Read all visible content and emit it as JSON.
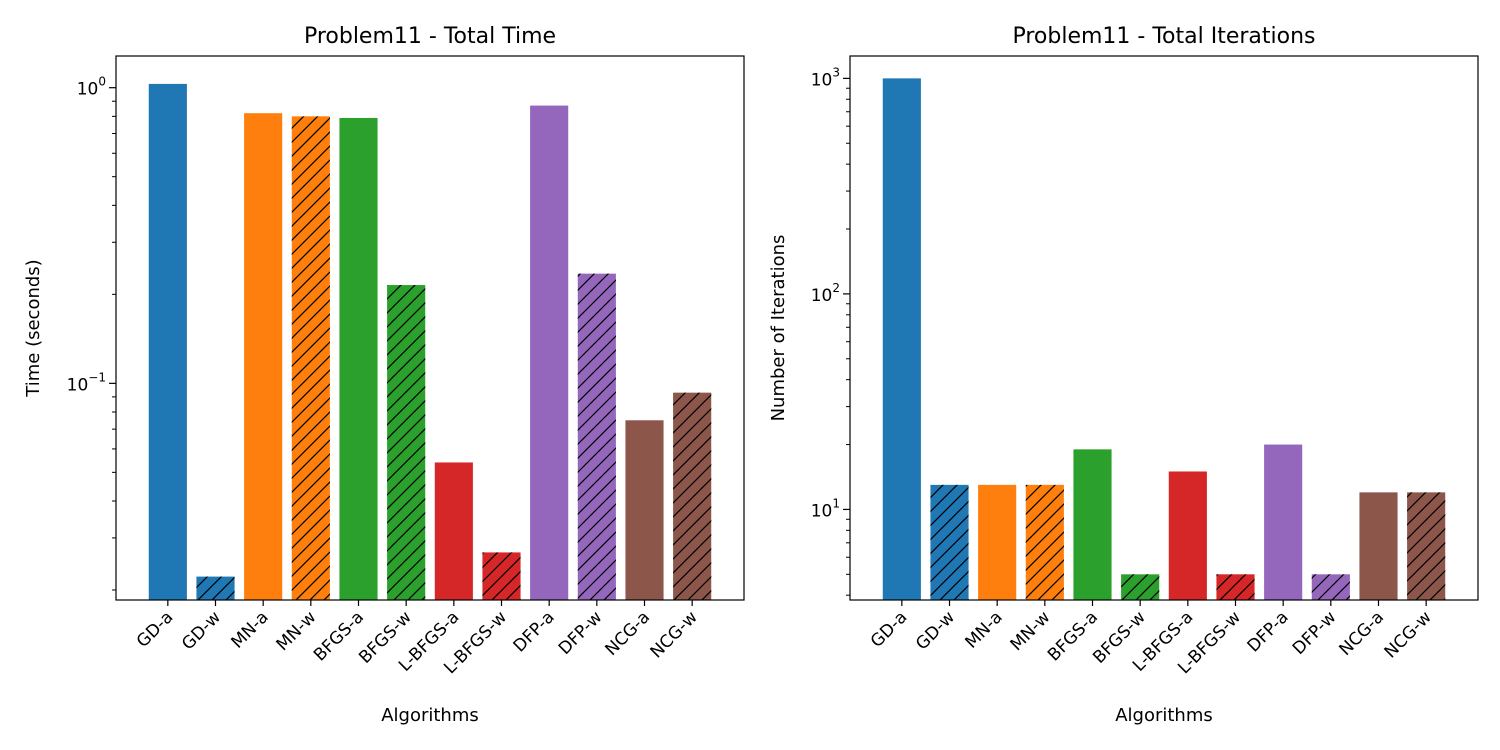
{
  "chart_data": [
    {
      "type": "bar",
      "title": "Problem11 - Total Time",
      "xlabel": "Algorithms",
      "ylabel": "Time (seconds)",
      "yscale": "log",
      "ylim": [
        0.0185,
        1.28
      ],
      "yticks": [
        0.1,
        1.0
      ],
      "ytick_labels": [
        {
          "base": "10",
          "exp": "−1"
        },
        {
          "base": "10",
          "exp": "0"
        }
      ],
      "grid": false,
      "categories": [
        "GD-a",
        "GD-w",
        "MN-a",
        "MN-w",
        "BFGS-a",
        "BFGS-w",
        "L-BFGS-a",
        "L-BFGS-w",
        "DFP-a",
        "DFP-w",
        "NCG-a",
        "NCG-w"
      ],
      "values": [
        1.03,
        0.0222,
        0.82,
        0.8,
        0.79,
        0.215,
        0.054,
        0.0268,
        0.87,
        0.235,
        0.075,
        0.093
      ],
      "colors": [
        "#1f77b4",
        "#1f77b4",
        "#ff7f0e",
        "#ff7f0e",
        "#2ca02c",
        "#2ca02c",
        "#d62728",
        "#d62728",
        "#9467bd",
        "#9467bd",
        "#8c564b",
        "#8c564b"
      ],
      "hatched": [
        false,
        true,
        false,
        true,
        false,
        true,
        false,
        true,
        false,
        true,
        false,
        true
      ]
    },
    {
      "type": "bar",
      "title": "Problem11 - Total Iterations",
      "xlabel": "Algorithms",
      "ylabel": "Number of Iterations",
      "yscale": "log",
      "ylim": [
        3.8,
        1270
      ],
      "yticks": [
        10,
        100,
        1000
      ],
      "ytick_labels": [
        {
          "base": "10",
          "exp": "1"
        },
        {
          "base": "10",
          "exp": "2"
        },
        {
          "base": "10",
          "exp": "3"
        }
      ],
      "grid": false,
      "categories": [
        "GD-a",
        "GD-w",
        "MN-a",
        "MN-w",
        "BFGS-a",
        "BFGS-w",
        "L-BFGS-a",
        "L-BFGS-w",
        "DFP-a",
        "DFP-w",
        "NCG-a",
        "NCG-w"
      ],
      "values": [
        1000,
        13,
        13,
        13,
        19,
        5,
        15,
        5,
        20,
        5,
        12,
        12
      ],
      "colors": [
        "#1f77b4",
        "#1f77b4",
        "#ff7f0e",
        "#ff7f0e",
        "#2ca02c",
        "#2ca02c",
        "#d62728",
        "#d62728",
        "#9467bd",
        "#9467bd",
        "#8c564b",
        "#8c564b"
      ],
      "hatched": [
        false,
        true,
        false,
        true,
        false,
        true,
        false,
        true,
        false,
        true,
        false,
        true
      ]
    }
  ]
}
